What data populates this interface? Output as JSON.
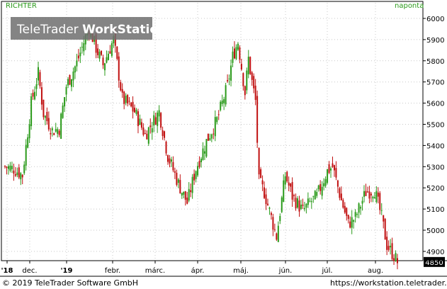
{
  "header": {
    "symbol": "RICHTER",
    "interval": "naponta",
    "watermark_brand": "TeleTrader",
    "watermark_product": "WorkStation"
  },
  "footer": {
    "copyright": "© 2019 TeleTrader Software GmbH",
    "url": "https://workstation.teletrader.com"
  },
  "colors": {
    "up": "#2a9a1a",
    "down": "#c01010",
    "symbol_text": "#2a9a1a",
    "interval_text": "#2a9a1a",
    "grid": "#c8c8c8"
  },
  "chart_data": {
    "type": "candlestick",
    "symbol": "RICHTER",
    "period": "naponta",
    "ylim": [
      4800,
      6050
    ],
    "y_ticks": [
      4900,
      5000,
      5100,
      5200,
      5300,
      5400,
      5500,
      5600,
      5700,
      5800,
      5900,
      6000
    ],
    "last_value": 4850,
    "last_value_label": "4850",
    "x_tick_labels": [
      "'18",
      "dec.",
      "'19",
      "febr.",
      "márc.",
      "ápr.",
      "máj.",
      "jún.",
      "júl.",
      "aug."
    ],
    "grid": true,
    "price_path": [
      [
        0,
        5300
      ],
      [
        5,
        5290
      ],
      [
        10,
        5260
      ],
      [
        15,
        5600
      ],
      [
        19,
        5740
      ],
      [
        22,
        5550
      ],
      [
        27,
        5470
      ],
      [
        31,
        5480
      ],
      [
        35,
        5680
      ],
      [
        41,
        5790
      ],
      [
        48,
        5960
      ],
      [
        52,
        5860
      ],
      [
        56,
        5780
      ],
      [
        62,
        5900
      ],
      [
        67,
        5620
      ],
      [
        74,
        5560
      ],
      [
        80,
        5450
      ],
      [
        88,
        5560
      ],
      [
        93,
        5350
      ],
      [
        99,
        5220
      ],
      [
        104,
        5130
      ],
      [
        109,
        5290
      ],
      [
        115,
        5420
      ],
      [
        121,
        5520
      ],
      [
        127,
        5680
      ],
      [
        130,
        5820
      ],
      [
        133,
        5890
      ],
      [
        137,
        5650
      ],
      [
        139,
        5810
      ],
      [
        141,
        5700
      ],
      [
        143,
        5610
      ],
      [
        145,
        5230
      ],
      [
        148,
        5180
      ],
      [
        152,
        5060
      ],
      [
        155,
        4970
      ],
      [
        160,
        5260
      ],
      [
        164,
        5160
      ],
      [
        170,
        5090
      ],
      [
        174,
        5130
      ],
      [
        178,
        5160
      ],
      [
        184,
        5280
      ],
      [
        187,
        5300
      ],
      [
        192,
        5140
      ],
      [
        196,
        5030
      ],
      [
        200,
        5060
      ],
      [
        206,
        5180
      ],
      [
        211,
        5190
      ],
      [
        215,
        5060
      ],
      [
        218,
        4930
      ],
      [
        222,
        4880
      ],
      [
        224,
        4850
      ]
    ]
  }
}
